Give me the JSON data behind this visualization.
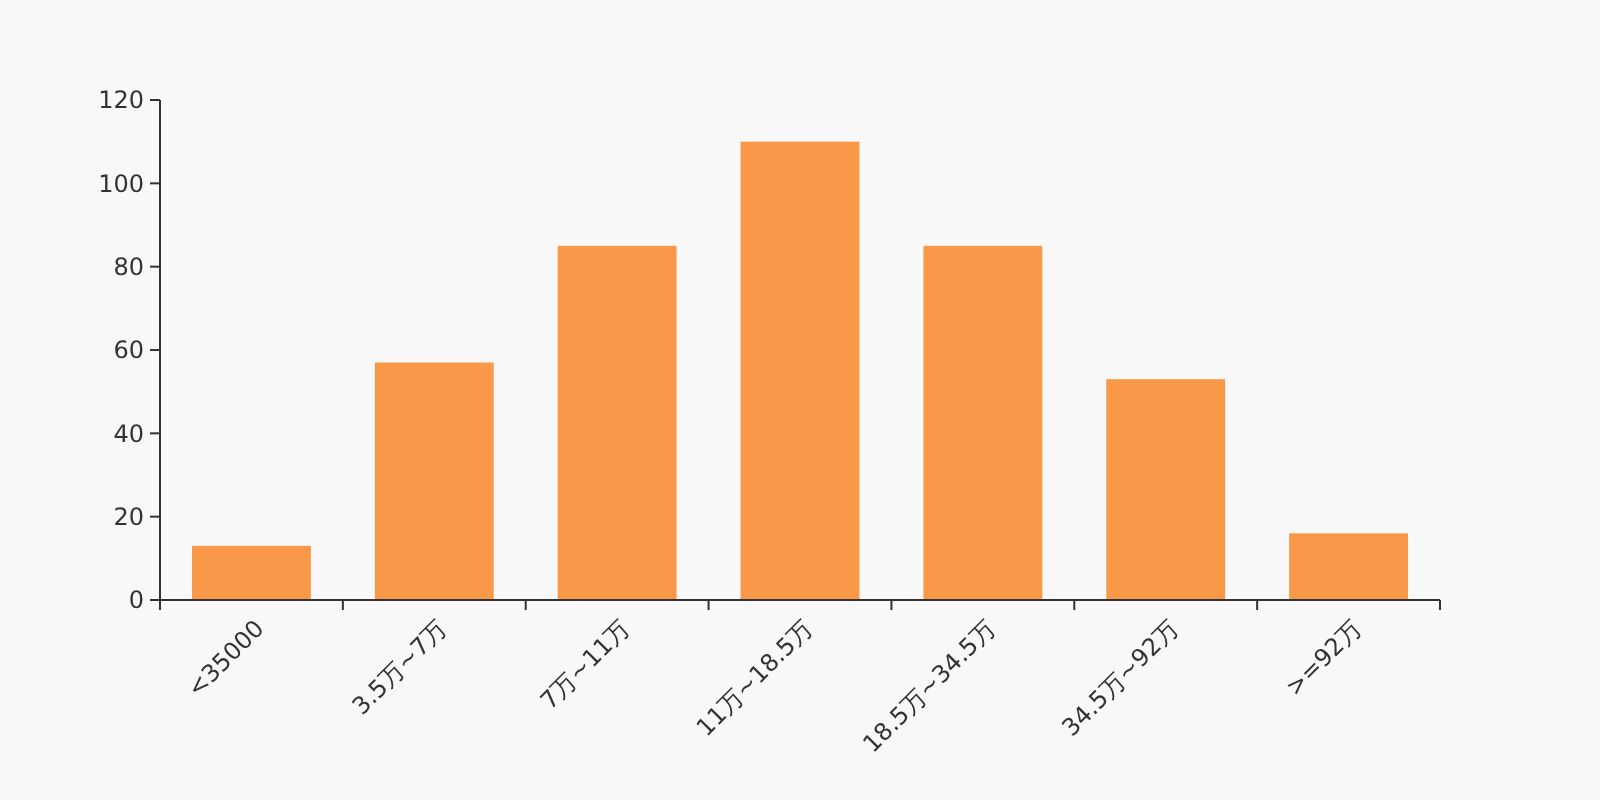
{
  "chart_data": {
    "type": "bar",
    "categories": [
      "<35000",
      "3.5万~7万",
      "7万~11万",
      "11万~18.5万",
      "18.5万~34.5万",
      "34.5万~92万",
      ">=92万"
    ],
    "values": [
      13,
      57,
      85,
      110,
      85,
      53,
      16
    ],
    "color": "#f89848",
    "ylim": [
      0,
      120
    ],
    "yticks": [
      0,
      20,
      40,
      60,
      80,
      100,
      120
    ],
    "grid": false
  }
}
